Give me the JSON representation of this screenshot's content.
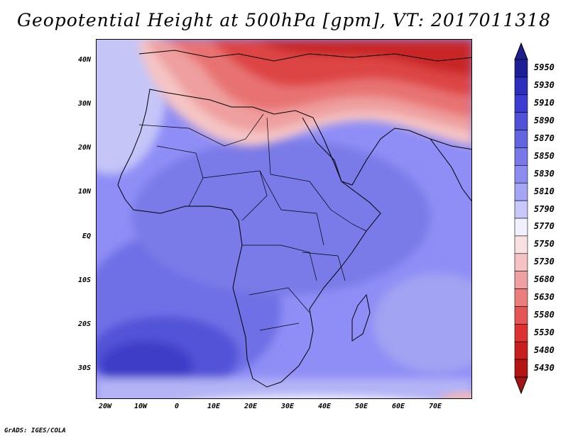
{
  "title": "Geopotential Height at 500hPa [gpm], VT: 2017011318",
  "credit": "GrADS: IGES/COLA",
  "lat_ticks": [
    "40N",
    "30N",
    "20N",
    "10N",
    "EQ",
    "10S",
    "20S",
    "30S"
  ],
  "lon_ticks": [
    "20W",
    "10W",
    "0",
    "10E",
    "20E",
    "30E",
    "40E",
    "50E",
    "60E",
    "70E"
  ],
  "colorbar": {
    "levels": [
      "5950",
      "5930",
      "5910",
      "5890",
      "5870",
      "5850",
      "5830",
      "5810",
      "5790",
      "5770",
      "5750",
      "5730",
      "5680",
      "5630",
      "5580",
      "5530",
      "5480",
      "5430"
    ],
    "colors": [
      "#1e1e96",
      "#2d2dbe",
      "#3c3cd2",
      "#5050d8",
      "#6464e0",
      "#7878e8",
      "#8c8cf0",
      "#a5a5f5",
      "#c8c8fa",
      "#f0f0ff",
      "#fae1e1",
      "#f5c3c3",
      "#f0a0a0",
      "#eb7d7d",
      "#e65555",
      "#dc3232",
      "#c81e1e",
      "#b41414"
    ],
    "arrow_top": "#1e1e8c",
    "arrow_bottom": "#a01414"
  },
  "map": {
    "lon_range": [
      -22,
      80
    ],
    "lat_range": [
      -37,
      45
    ]
  }
}
